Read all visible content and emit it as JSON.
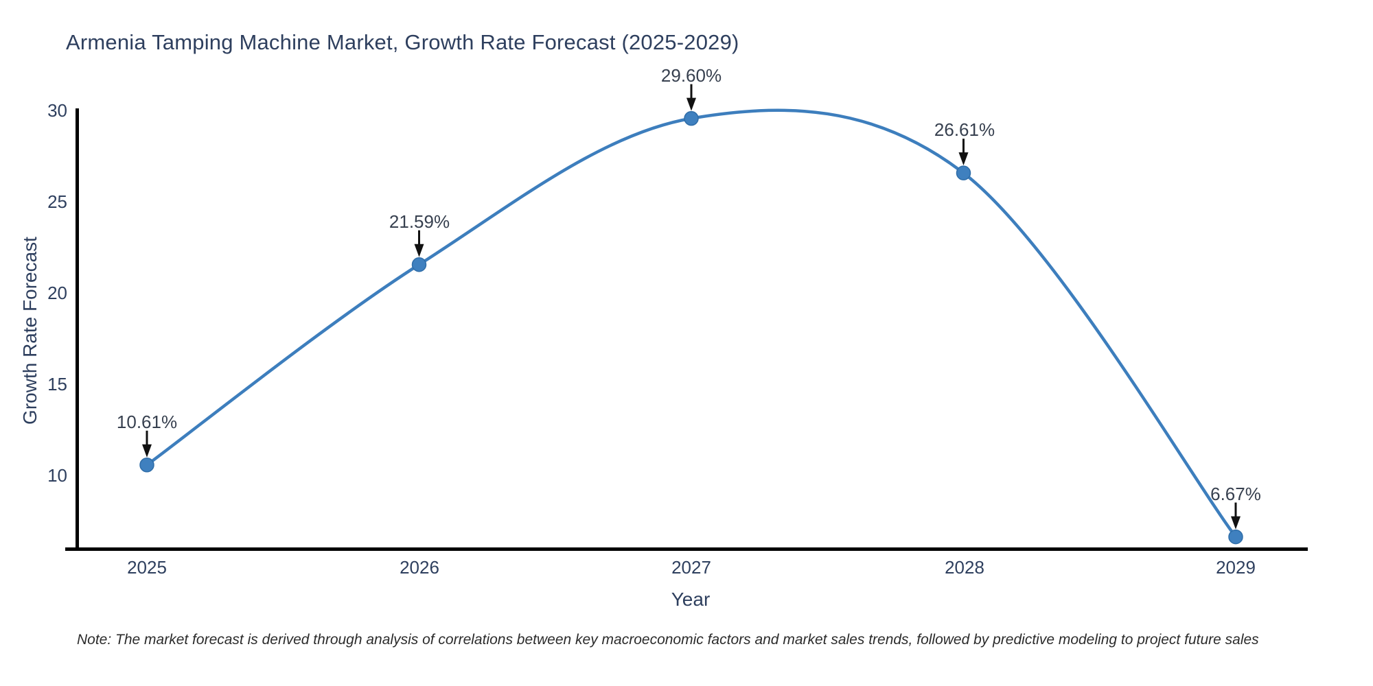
{
  "title": "Armenia Tamping Machine Market, Growth Rate Forecast (2025-2029)",
  "note": "Note: The market forecast is derived through analysis of correlations between key macroeconomic factors and market sales trends, followed by predictive modeling to project future sales",
  "chart_data": {
    "type": "line",
    "title": "Armenia Tamping Machine Market, Growth Rate Forecast (2025-2029)",
    "xlabel": "Year",
    "ylabel": "Growth Rate Forecast",
    "categories": [
      "2025",
      "2026",
      "2027",
      "2028",
      "2029"
    ],
    "values": [
      10.61,
      21.59,
      29.6,
      26.61,
      6.67
    ],
    "point_labels": [
      "10.61%",
      "21.59%",
      "29.60%",
      "26.61%",
      "6.67%"
    ],
    "ytick_values": [
      30,
      25,
      20,
      15,
      10
    ],
    "ytick_labels": [
      "30",
      "25",
      "20",
      "15",
      "10"
    ],
    "ylim": [
      6.0,
      31.5
    ],
    "grid": false,
    "legend": "none",
    "curve": "smooth-spline",
    "line_color": "#3d7ebd",
    "marker_color": "#3f80bf",
    "marker_edge_color": "#2f6da8",
    "arrow_color": "#111111",
    "axis_color": "#000000",
    "text_color": "#2e3f5e"
  }
}
